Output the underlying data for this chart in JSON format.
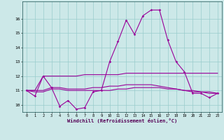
{
  "xlabel": "Windchill (Refroidissement éolien,°C)",
  "x": [
    0,
    1,
    2,
    3,
    4,
    5,
    6,
    7,
    8,
    9,
    10,
    11,
    12,
    13,
    14,
    15,
    16,
    17,
    18,
    19,
    20,
    21,
    22,
    23
  ],
  "line1": [
    11.0,
    10.6,
    12.0,
    11.2,
    9.9,
    10.3,
    9.7,
    9.8,
    10.9,
    11.0,
    13.0,
    14.4,
    15.9,
    14.9,
    16.2,
    16.6,
    16.6,
    14.5,
    13.0,
    12.3,
    10.8,
    10.8,
    10.5,
    10.8
  ],
  "line2": [
    11.0,
    11.0,
    12.0,
    12.0,
    12.0,
    12.0,
    12.0,
    12.1,
    12.1,
    12.1,
    12.1,
    12.1,
    12.2,
    12.2,
    12.2,
    12.2,
    12.2,
    12.2,
    12.2,
    12.2,
    12.2,
    12.2,
    12.2,
    12.2
  ],
  "line3": [
    11.0,
    11.0,
    11.0,
    11.2,
    11.2,
    11.1,
    11.1,
    11.1,
    11.2,
    11.2,
    11.3,
    11.3,
    11.4,
    11.4,
    11.4,
    11.4,
    11.3,
    11.2,
    11.1,
    11.0,
    11.0,
    10.9,
    10.9,
    10.8
  ],
  "line4": [
    11.0,
    10.9,
    10.9,
    11.1,
    11.1,
    11.0,
    11.0,
    11.0,
    11.0,
    11.0,
    11.0,
    11.1,
    11.1,
    11.2,
    11.2,
    11.2,
    11.2,
    11.1,
    11.1,
    11.0,
    10.9,
    10.9,
    10.8,
    10.8
  ],
  "line_color": "#990099",
  "bg_color": "#cce8e8",
  "grid_color": "#99cccc",
  "ylim": [
    9.5,
    17.2
  ],
  "xlim": [
    -0.5,
    23.5
  ],
  "yticks": [
    10,
    11,
    12,
    13,
    14,
    15,
    16
  ],
  "xticks": [
    0,
    1,
    2,
    3,
    4,
    5,
    6,
    7,
    8,
    9,
    10,
    11,
    12,
    13,
    14,
    15,
    16,
    17,
    18,
    19,
    20,
    21,
    22,
    23
  ]
}
